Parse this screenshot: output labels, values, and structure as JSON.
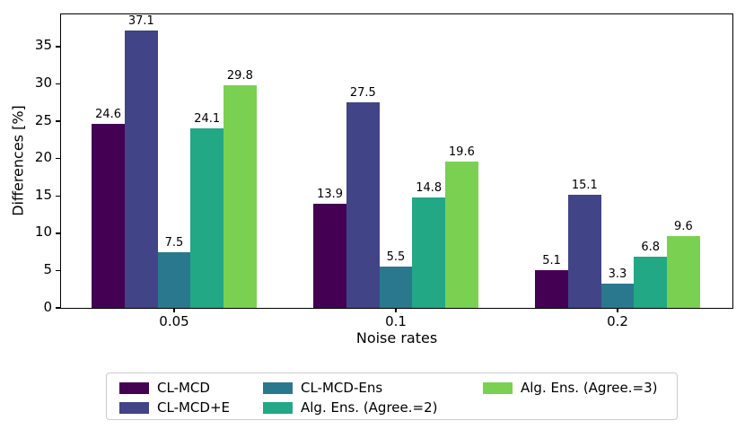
{
  "chart_data": {
    "type": "bar",
    "title": "",
    "xlabel": "Noise rates",
    "ylabel": "Differences [%]",
    "categories": [
      "0.05",
      "0.1",
      "0.2"
    ],
    "series": [
      {
        "name": "CL-MCD",
        "color": "#440154",
        "values": [
          24.6,
          13.9,
          5.1
        ]
      },
      {
        "name": "CL-MCD+E",
        "color": "#414487",
        "values": [
          37.1,
          27.5,
          15.1
        ]
      },
      {
        "name": "CL-MCD-Ens",
        "color": "#2a788e",
        "values": [
          7.5,
          5.5,
          3.3
        ]
      },
      {
        "name": "Alg. Ens. (Agree.=2)",
        "color": "#22a884",
        "values": [
          24.1,
          14.8,
          6.8
        ]
      },
      {
        "name": "Alg. Ens. (Agree.=3)",
        "color": "#7ad151",
        "values": [
          29.8,
          19.6,
          9.6
        ]
      }
    ],
    "bar_value_labels": [
      [
        "24.6",
        "13.9",
        "5.1"
      ],
      [
        "37.1",
        "27.5",
        "15.1"
      ],
      [
        "7.5",
        "5.5",
        "3.3"
      ],
      [
        "24.1",
        "14.8",
        "6.8"
      ],
      [
        "29.8",
        "19.6",
        "9.6"
      ]
    ],
    "ylim": [
      0,
      39.2
    ],
    "yticks": [
      0,
      5,
      10,
      15,
      20,
      25,
      30,
      35
    ],
    "grid": false,
    "legend_position": "bottom",
    "legend_columns": [
      [
        0,
        1
      ],
      [
        2,
        3
      ],
      [
        4
      ]
    ],
    "axis_color": "#000000",
    "background_color": "#ffffff"
  }
}
